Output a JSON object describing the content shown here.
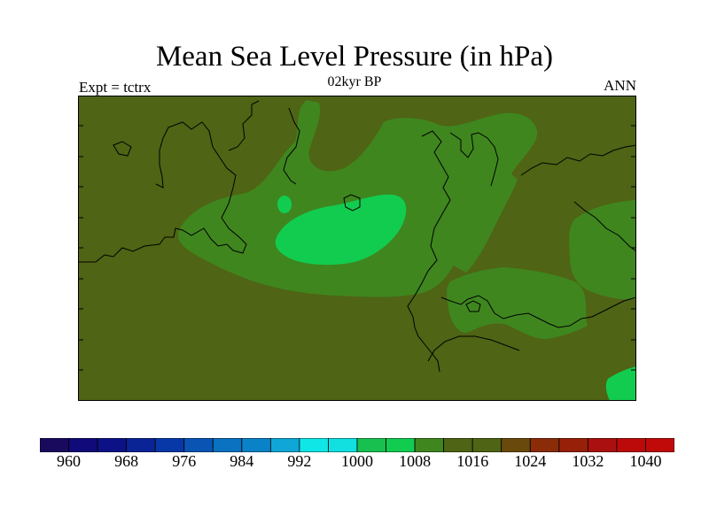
{
  "title": "Mean Sea Level Pressure (in hPa)",
  "subtitle_left": "Expt = tctrx",
  "subtitle_center": "02kyr BP",
  "subtitle_right": "ANN",
  "colors": {
    "background_field": "#4f6414",
    "level_1008": "#3f861f",
    "level_1000": "#12cc50",
    "coastline": "#000000"
  },
  "chart_data": {
    "type": "heatmap",
    "variable": "Mean Sea Level Pressure",
    "units": "hPa",
    "period": "02kyr BP",
    "season": "ANN",
    "experiment": "tctrx",
    "colorbar": {
      "levels": [
        960,
        964,
        968,
        972,
        976,
        980,
        984,
        988,
        992,
        996,
        1000,
        1004,
        1008,
        1012,
        1016,
        1020,
        1024,
        1028,
        1032,
        1036,
        1040
      ],
      "tick_labels": [
        "960",
        "968",
        "976",
        "984",
        "992",
        "1000",
        "1008",
        "1016",
        "1024",
        "1032",
        "1040"
      ],
      "colors": [
        "#1a0a5e",
        "#100a7a",
        "#0c1286",
        "#0a2496",
        "#0838a8",
        "#0a55b4",
        "#0a72c0",
        "#0a82c8",
        "#10a6d8",
        "#10e6e6",
        "#12e0e0",
        "#18c050",
        "#12cc50",
        "#3f861f",
        "#4f6414",
        "#4f6414",
        "#6a4a0c",
        "#8a2c08",
        "#962008",
        "#aa1010",
        "#bc0a0a",
        "#c00a0a"
      ]
    }
  }
}
